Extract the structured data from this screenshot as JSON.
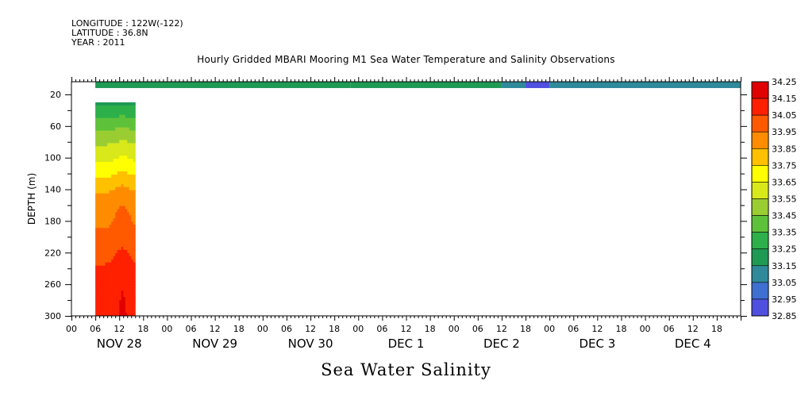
{
  "header": {
    "longitude": "LONGITUDE : 122W(-122)",
    "latitude": "LATITUDE : 36.8N",
    "year": "YEAR : 2011",
    "title": "Hourly Gridded MBARI Mooring M1 Sea Water Temperature and Salinity Observations"
  },
  "bottom_title": "Sea Water Salinity",
  "colors": {
    "background": "#ffffff",
    "axis": "#000000"
  },
  "chart_data": {
    "type": "heatmap",
    "title": "Hourly Gridded MBARI Mooring M1 Sea Water Temperature and Salinity Observations",
    "variable": "Sea Water Salinity",
    "ylabel": "DEPTH (m)",
    "ylim": [
      300,
      4
    ],
    "y_ticks": [
      20,
      60,
      100,
      140,
      180,
      220,
      260,
      300
    ],
    "y_tick_labels": [
      "20",
      "60",
      "100",
      "140",
      "180",
      "220",
      "260",
      "300"
    ],
    "x_hour_labels": [
      "00",
      "06",
      "12",
      "18",
      "00",
      "06",
      "12",
      "18",
      "00",
      "06",
      "12",
      "18",
      "00",
      "06",
      "12",
      "18",
      "00",
      "06",
      "12",
      "18",
      "00",
      "06",
      "12",
      "18",
      "00",
      "06",
      "12",
      "18"
    ],
    "x_day_labels": [
      "NOV 28",
      "NOV 29",
      "NOV 30",
      "DEC  1",
      "DEC  2",
      "DEC  3",
      "DEC  4"
    ],
    "x_range_hours": [
      0,
      168
    ],
    "colorbar": {
      "levels": [
        32.85,
        32.95,
        33.05,
        33.15,
        33.25,
        33.35,
        33.45,
        33.55,
        33.65,
        33.75,
        33.85,
        33.95,
        34.05,
        34.15,
        34.25
      ],
      "labels": [
        "32.85",
        "32.95",
        "33.05",
        "33.15",
        "33.25",
        "33.35",
        "33.45",
        "33.55",
        "33.65",
        "33.75",
        "33.85",
        "33.95",
        "34.05",
        "34.15",
        "34.25"
      ],
      "colors": [
        "#cc00ff",
        "#a020f0",
        "#7b2ee6",
        "#5050e0",
        "#3f6fd0",
        "#2e8a9a",
        "#1e9a55",
        "#2db04a",
        "#5dc23a",
        "#9acd32",
        "#d8e81a",
        "#ffff00",
        "#ffc000",
        "#ff8c00",
        "#ff5a00",
        "#ff2000",
        "#e00000",
        "#b00000"
      ]
    },
    "surface_layer": {
      "depth_range": [
        4,
        12
      ],
      "segments": [
        {
          "start_hour": 6,
          "end_hour": 70,
          "value": 33.3
        },
        {
          "start_hour": 70,
          "end_hour": 108,
          "value": 33.33
        },
        {
          "start_hour": 108,
          "end_hour": 114,
          "value": 33.25
        },
        {
          "start_hour": 114,
          "end_hour": 120,
          "value": 33.05
        },
        {
          "start_hour": 120,
          "end_hour": 168,
          "value": 33.2
        }
      ]
    },
    "profile_block": {
      "start_hour": 6,
      "end_hour": 16,
      "depth_range": [
        30,
        300
      ],
      "depth_profile": [
        {
          "depth": 30,
          "value": 33.32
        },
        {
          "depth": 50,
          "value": 33.45
        },
        {
          "depth": 70,
          "value": 33.58
        },
        {
          "depth": 90,
          "value": 33.68
        },
        {
          "depth": 110,
          "value": 33.77
        },
        {
          "depth": 130,
          "value": 33.88
        },
        {
          "depth": 150,
          "value": 33.98
        },
        {
          "depth": 170,
          "value": 34.02
        },
        {
          "depth": 190,
          "value": 34.05
        },
        {
          "depth": 210,
          "value": 34.09
        },
        {
          "depth": 230,
          "value": 34.14
        },
        {
          "depth": 250,
          "value": 34.18
        },
        {
          "depth": 270,
          "value": 34.2
        },
        {
          "depth": 300,
          "value": 34.21
        }
      ]
    }
  }
}
